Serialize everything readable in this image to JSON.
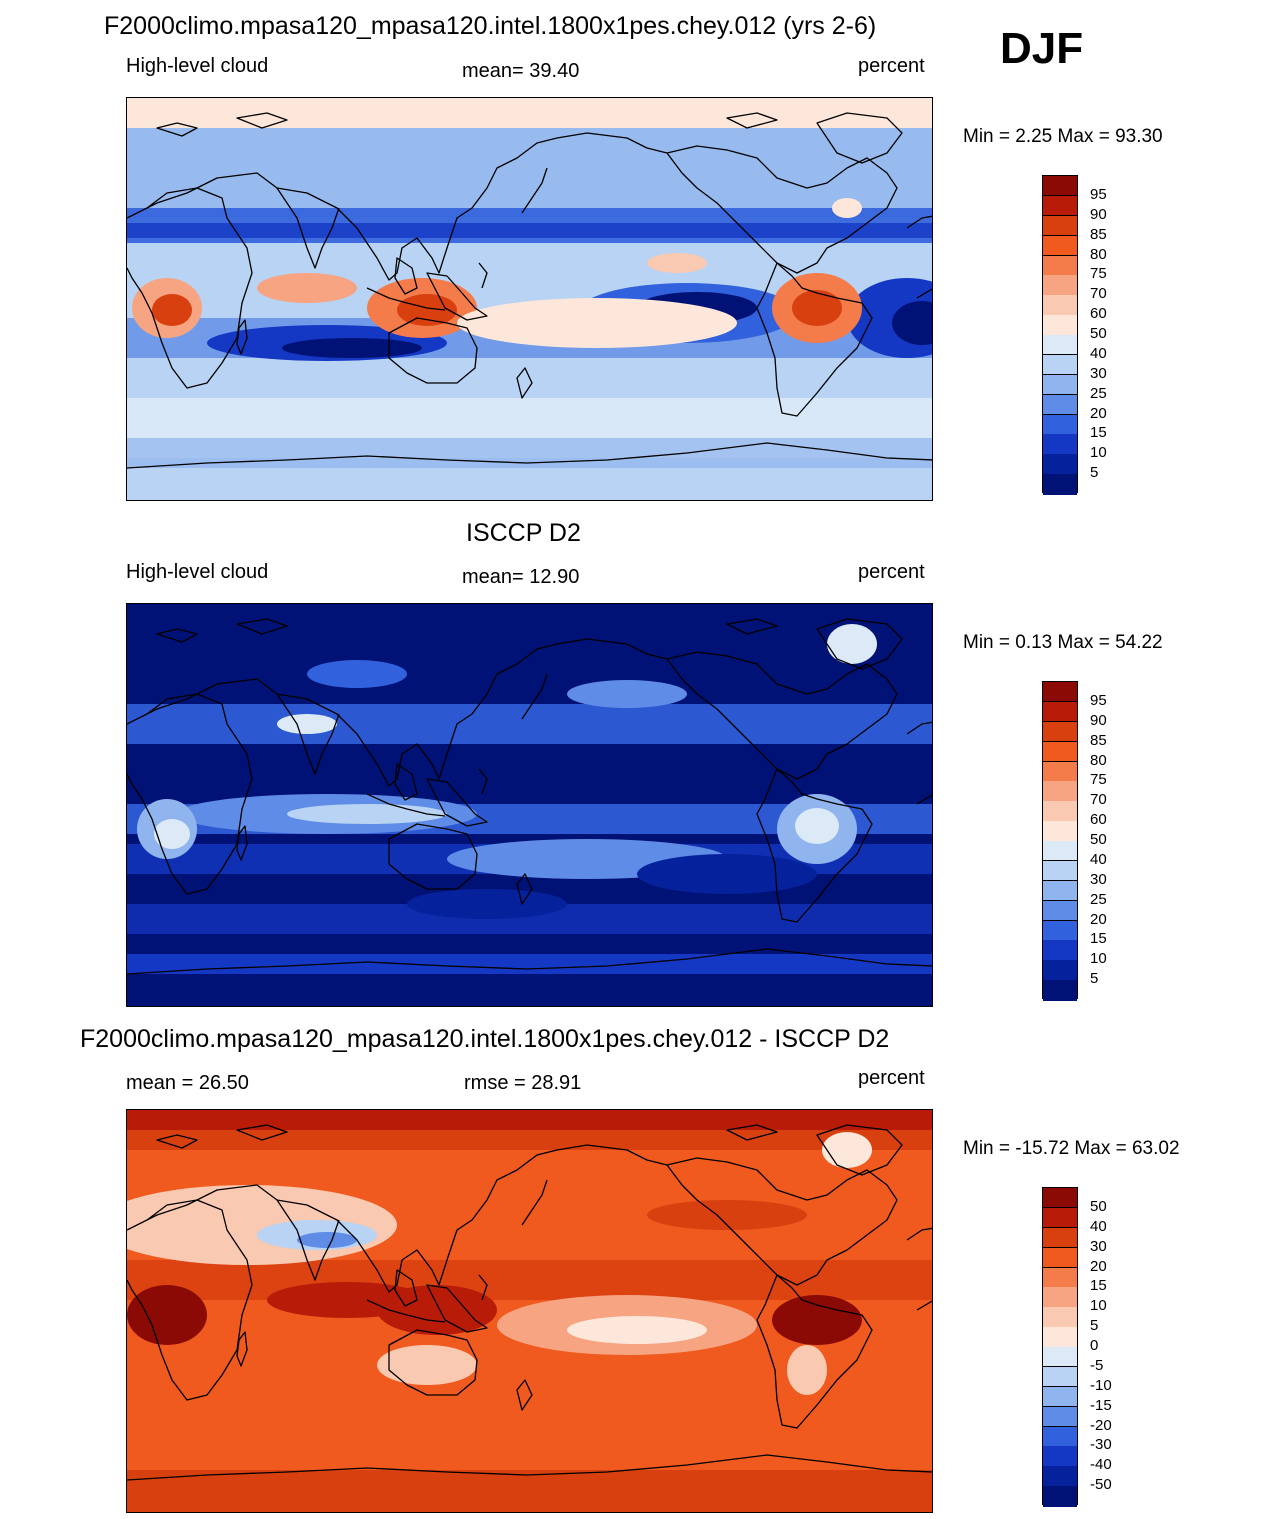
{
  "season": "DJF",
  "panels": [
    {
      "title": "F2000climo.mpasa120_mpasa120.intel.1800x1pes.chey.012 (yrs 2-6)",
      "left_label": "High-level cloud",
      "center_label": "mean=  39.40",
      "right_label": "percent",
      "minmax": "Min =   2.25 Max =  93.30",
      "colorbar": {
        "labels": [
          "95",
          "90",
          "85",
          "80",
          "75",
          "70",
          "60",
          "50",
          "40",
          "30",
          "25",
          "20",
          "15",
          "10",
          "5"
        ],
        "colors": [
          "#8b0a05",
          "#b81c09",
          "#d9400f",
          "#f05a1e",
          "#f47c4b",
          "#f7a482",
          "#fac9b1",
          "#fde7db",
          "#dceaf8",
          "#b8d3f3",
          "#8fb4ee",
          "#5f8ce6",
          "#3161dc",
          "#1438c4",
          "#05229c",
          "#001275"
        ]
      },
      "map_theme": "model"
    },
    {
      "title": "ISCCP D2",
      "left_label": "High-level cloud",
      "center_label": "mean=  12.90",
      "right_label": "percent",
      "minmax": "Min =   0.13 Max =  54.22",
      "colorbar": {
        "labels": [
          "95",
          "90",
          "85",
          "80",
          "75",
          "70",
          "60",
          "50",
          "40",
          "30",
          "25",
          "20",
          "15",
          "10",
          "5"
        ],
        "colors": [
          "#8b0a05",
          "#b81c09",
          "#d9400f",
          "#f05a1e",
          "#f47c4b",
          "#f7a482",
          "#fac9b1",
          "#fde7db",
          "#dceaf8",
          "#b8d3f3",
          "#8fb4ee",
          "#5f8ce6",
          "#3161dc",
          "#1438c4",
          "#05229c",
          "#001275"
        ]
      },
      "map_theme": "obs"
    },
    {
      "title": "F2000climo.mpasa120_mpasa120.intel.1800x1pes.chey.012 - ISCCP D2",
      "left_label": "mean =  26.50",
      "center_label": "rmse =  28.91",
      "right_label": "percent",
      "minmax": "Min = -15.72 Max =  63.02",
      "colorbar": {
        "labels": [
          "50",
          "40",
          "30",
          "20",
          "15",
          "10",
          "5",
          "0",
          "-5",
          "-10",
          "-15",
          "-20",
          "-30",
          "-40",
          "-50"
        ],
        "colors": [
          "#8b0a05",
          "#b81c09",
          "#d9400f",
          "#f05a1e",
          "#f47c4b",
          "#f7a482",
          "#fac9b1",
          "#fde7db",
          "#dceaf8",
          "#b8d3f3",
          "#8fb4ee",
          "#5f8ce6",
          "#3161dc",
          "#1438c4",
          "#05229c",
          "#001275"
        ]
      },
      "map_theme": "diff"
    }
  ]
}
